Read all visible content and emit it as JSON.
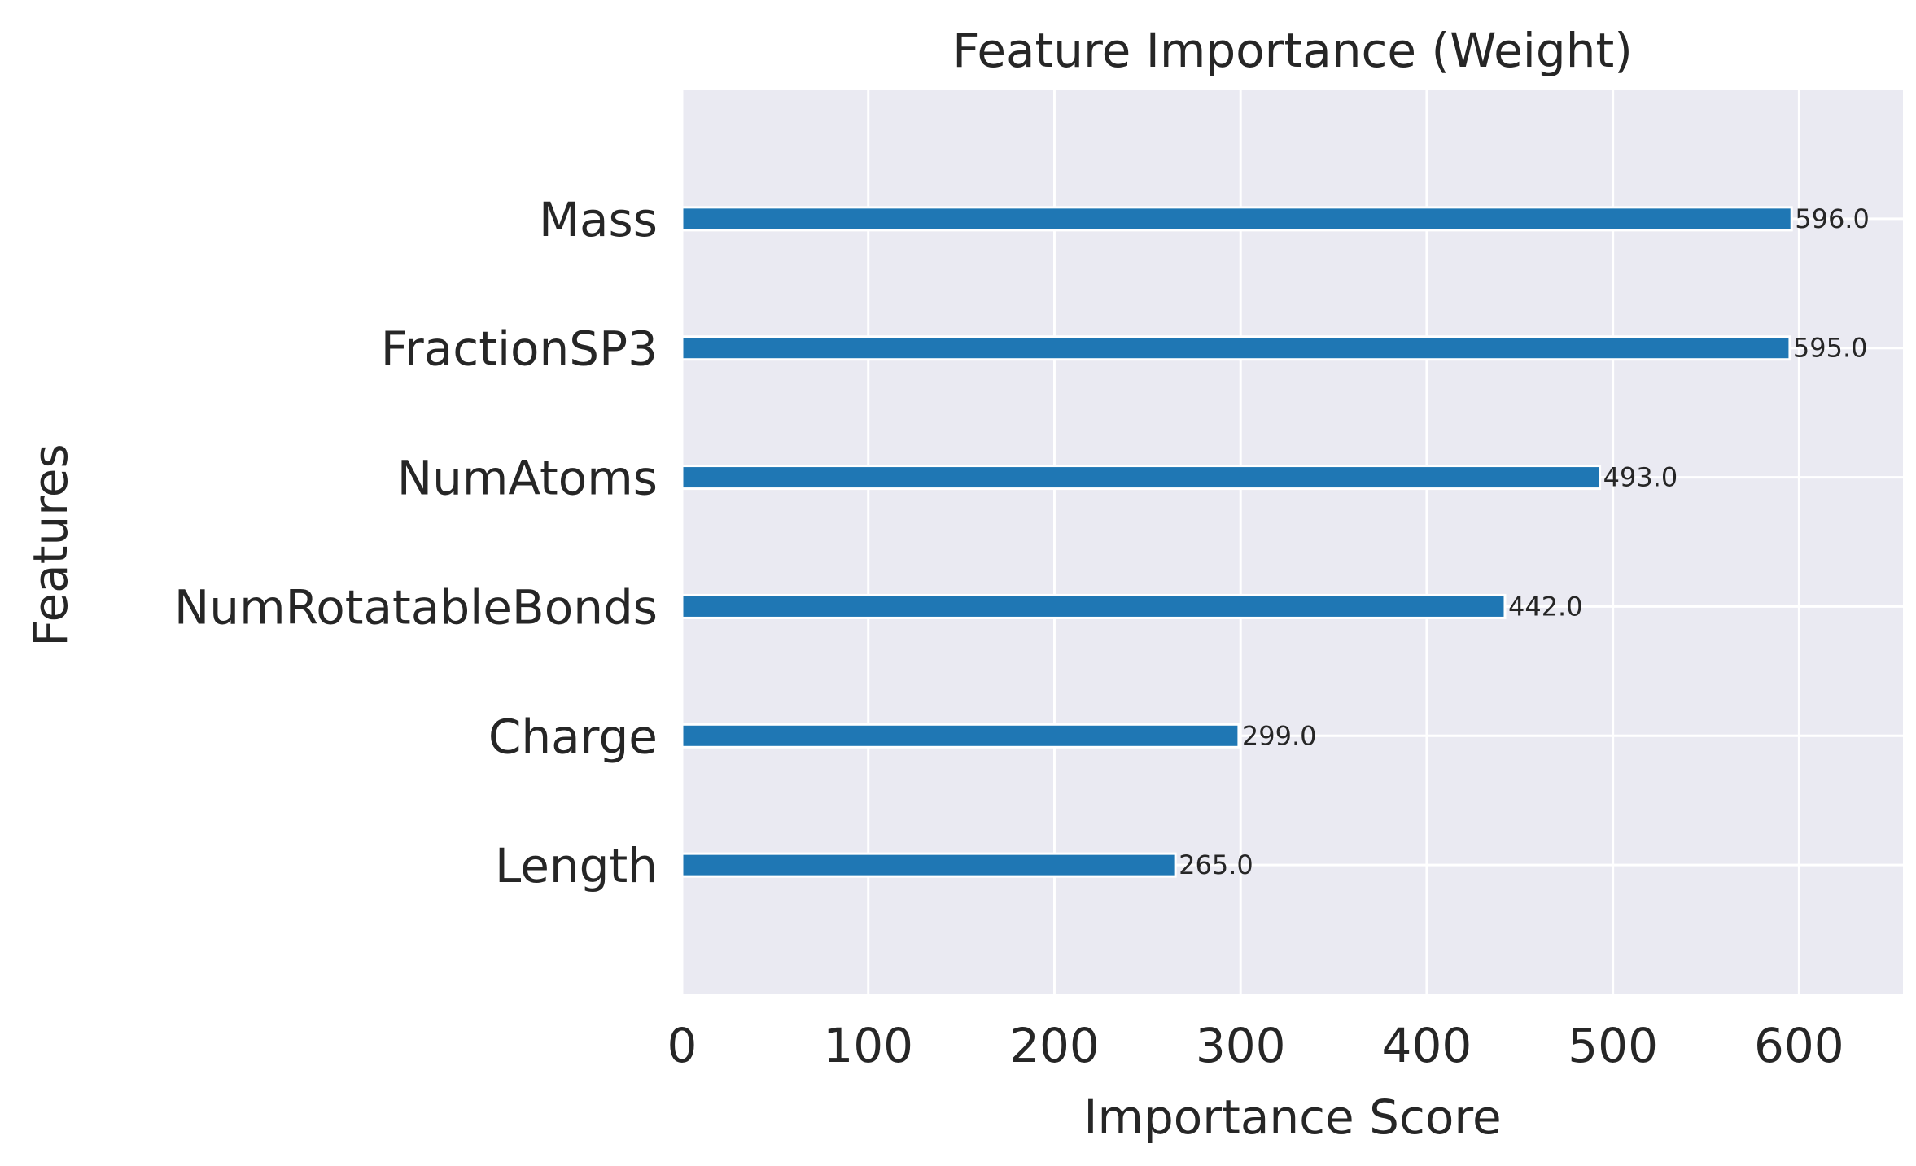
{
  "chart_data": {
    "type": "bar",
    "orientation": "horizontal",
    "title": "Feature Importance (Weight)",
    "xlabel": "Importance Score",
    "ylabel": "Features",
    "categories": [
      "Length",
      "Charge",
      "NumRotatableBonds",
      "NumAtoms",
      "FractionSP3",
      "Mass"
    ],
    "values": [
      265.0,
      299.0,
      442.0,
      493.0,
      595.0,
      596.0
    ],
    "value_labels": [
      "265.0",
      "299.0",
      "442.0",
      "493.0",
      "595.0",
      "596.0"
    ],
    "xlim": [
      0,
      655.8
    ],
    "xticks": [
      0,
      100,
      200,
      300,
      400,
      500,
      600
    ],
    "xtick_labels": [
      "0",
      "100",
      "200",
      "300",
      "400",
      "500",
      "600"
    ],
    "grid": true,
    "colors": {
      "bar": "#1f77b4",
      "plot_background": "#eaeaf2",
      "grid": "#ffffff",
      "text": "#262626"
    }
  }
}
